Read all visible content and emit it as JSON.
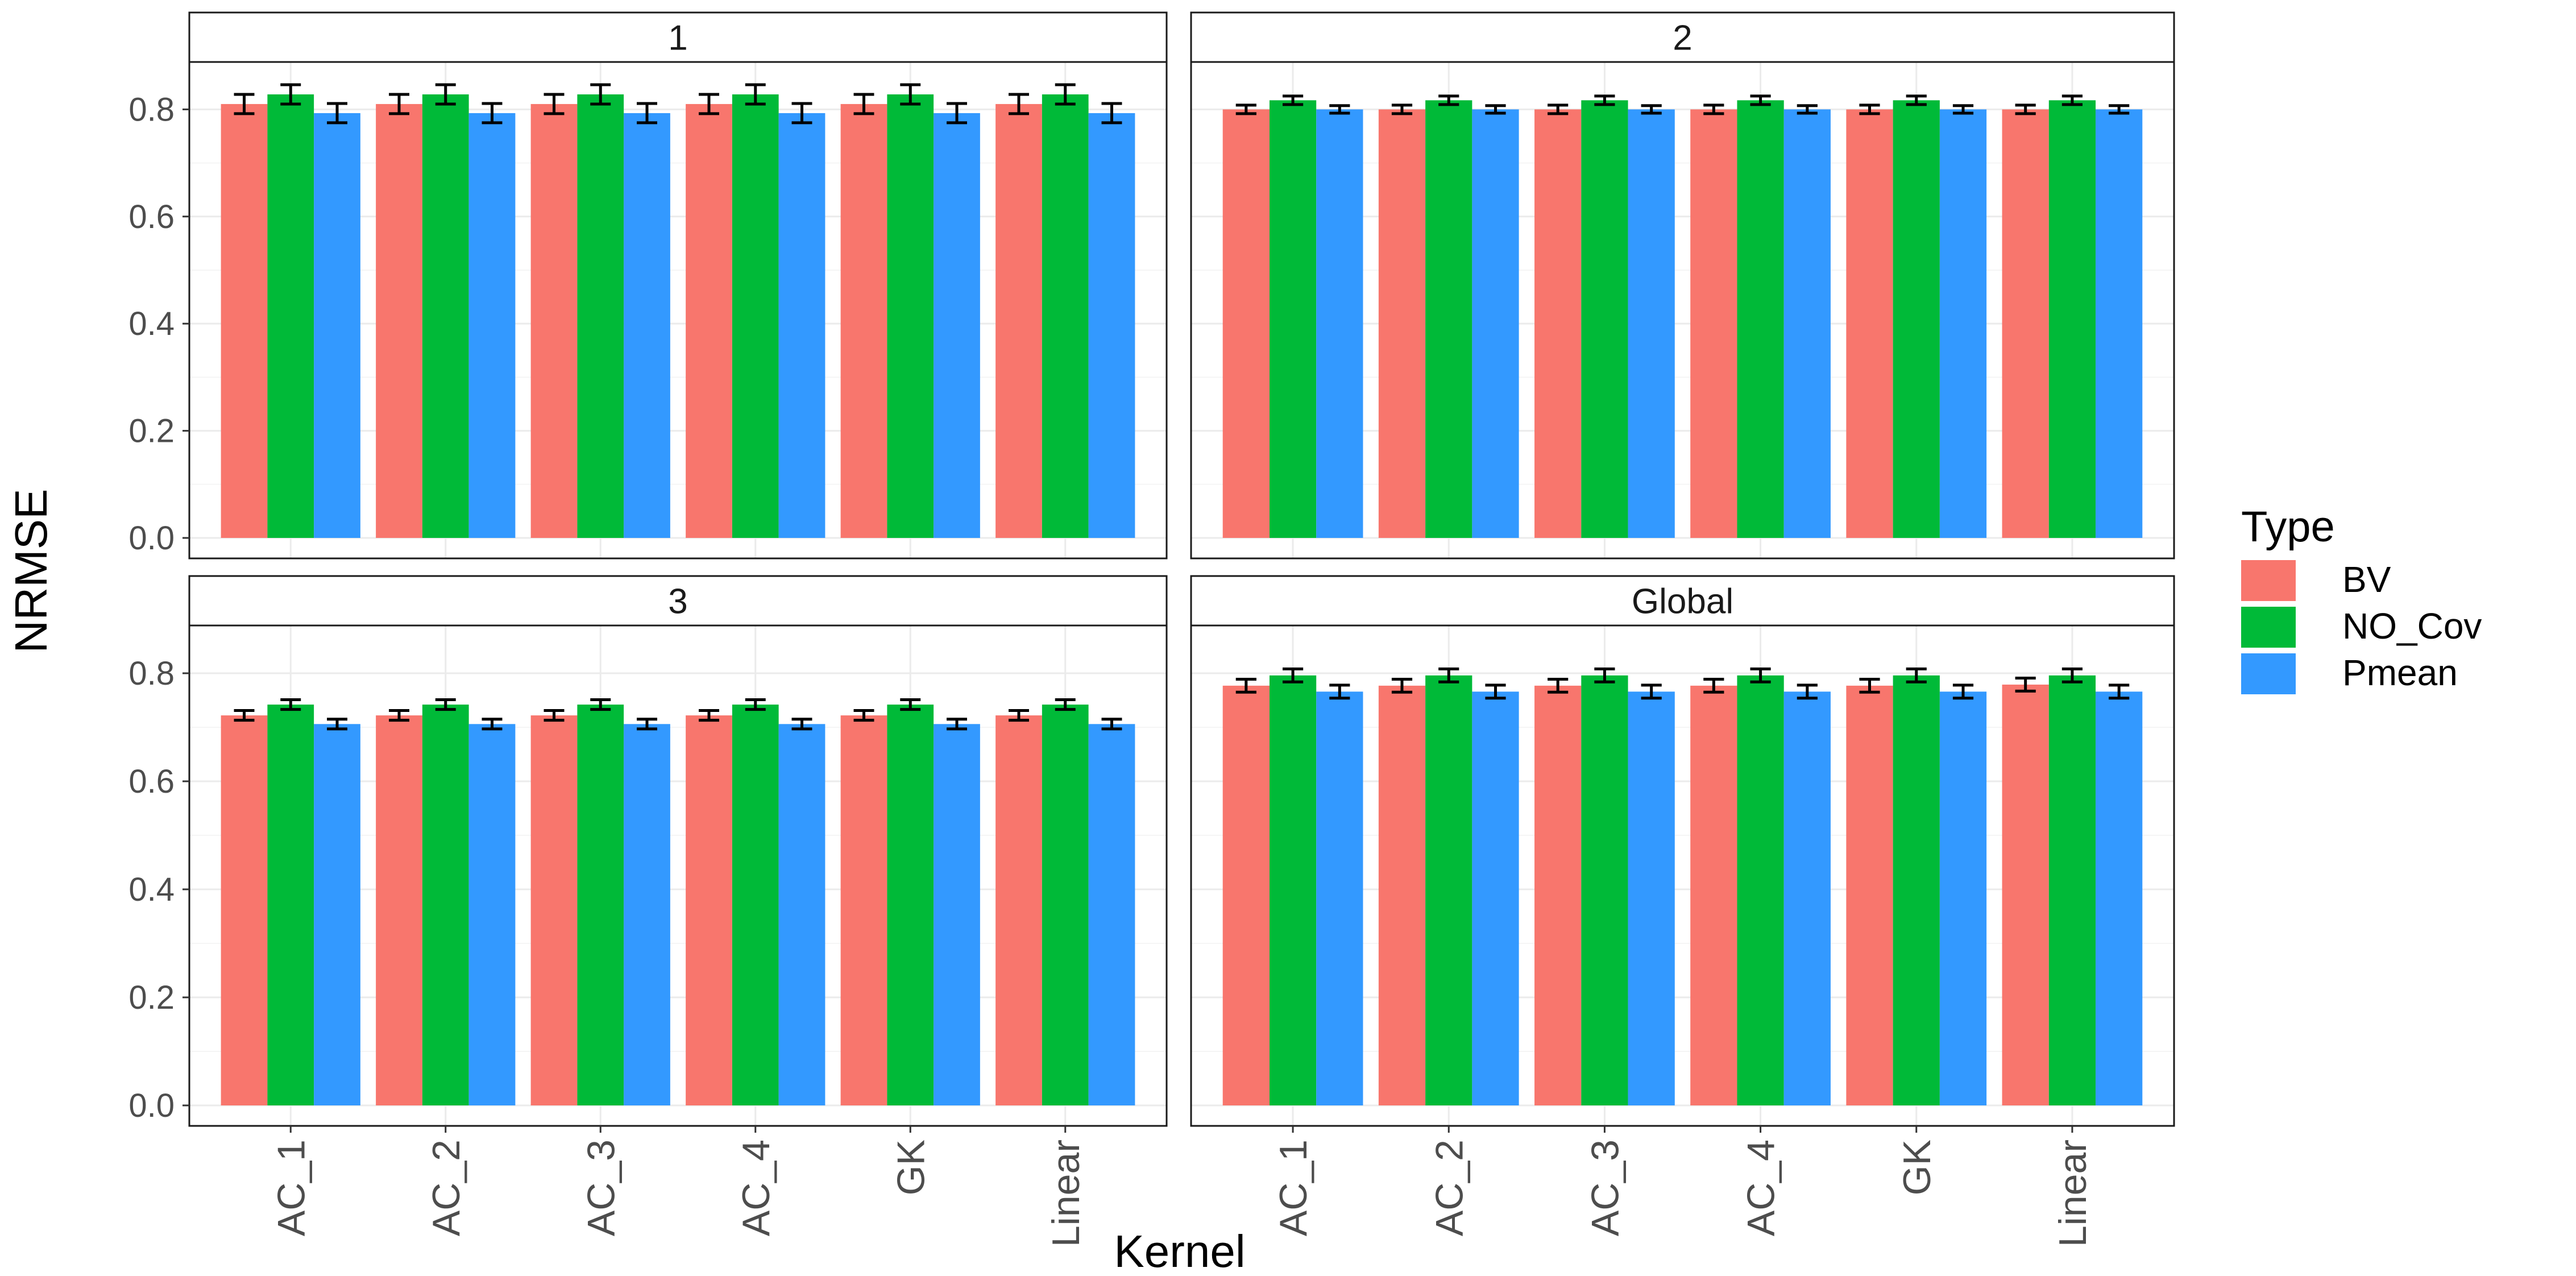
{
  "chart_data": {
    "type": "bar",
    "xlabel": "Kernel",
    "ylabel": "NRMSE",
    "ylim": [
      0,
      0.88
    ],
    "yticks": [
      "0.0",
      "0.2",
      "0.4",
      "0.6",
      "0.8"
    ],
    "grid": true,
    "legend": {
      "title": "Type",
      "position": "right"
    },
    "categories": [
      "AC_1",
      "AC_2",
      "AC_3",
      "AC_4",
      "GK",
      "Linear"
    ],
    "series_meta": [
      {
        "name": "BV",
        "color": "#F8766D"
      },
      {
        "name": "NO_Cov",
        "color": "#00BA38"
      },
      {
        "name": "Pmean",
        "color": "#3399FF"
      }
    ],
    "panels": [
      {
        "label": "1",
        "series": [
          {
            "name": "BV",
            "values": [
              0.81,
              0.81,
              0.81,
              0.81,
              0.81,
              0.81
            ],
            "errors": [
              0.018,
              0.018,
              0.018,
              0.018,
              0.018,
              0.018
            ]
          },
          {
            "name": "NO_Cov",
            "values": [
              0.828,
              0.828,
              0.828,
              0.828,
              0.828,
              0.828
            ],
            "errors": [
              0.018,
              0.018,
              0.018,
              0.018,
              0.018,
              0.018
            ]
          },
          {
            "name": "Pmean",
            "values": [
              0.793,
              0.793,
              0.793,
              0.793,
              0.793,
              0.793
            ],
            "errors": [
              0.018,
              0.018,
              0.018,
              0.018,
              0.018,
              0.018
            ]
          }
        ]
      },
      {
        "label": "2",
        "series": [
          {
            "name": "BV",
            "values": [
              0.8,
              0.8,
              0.8,
              0.8,
              0.8,
              0.8
            ],
            "errors": [
              0.008,
              0.008,
              0.008,
              0.008,
              0.008,
              0.008
            ]
          },
          {
            "name": "NO_Cov",
            "values": [
              0.817,
              0.817,
              0.817,
              0.817,
              0.817,
              0.817
            ],
            "errors": [
              0.008,
              0.008,
              0.008,
              0.008,
              0.008,
              0.008
            ]
          },
          {
            "name": "Pmean",
            "values": [
              0.8,
              0.8,
              0.8,
              0.8,
              0.8,
              0.8
            ],
            "errors": [
              0.007,
              0.007,
              0.007,
              0.007,
              0.007,
              0.007
            ]
          }
        ]
      },
      {
        "label": "3",
        "series": [
          {
            "name": "BV",
            "values": [
              0.722,
              0.722,
              0.722,
              0.722,
              0.722,
              0.722
            ],
            "errors": [
              0.009,
              0.009,
              0.009,
              0.009,
              0.009,
              0.009
            ]
          },
          {
            "name": "NO_Cov",
            "values": [
              0.742,
              0.742,
              0.742,
              0.742,
              0.742,
              0.742
            ],
            "errors": [
              0.009,
              0.009,
              0.009,
              0.009,
              0.009,
              0.009
            ]
          },
          {
            "name": "Pmean",
            "values": [
              0.706,
              0.706,
              0.706,
              0.706,
              0.706,
              0.706
            ],
            "errors": [
              0.009,
              0.009,
              0.009,
              0.009,
              0.009,
              0.009
            ]
          }
        ]
      },
      {
        "label": "Global",
        "series": [
          {
            "name": "BV",
            "values": [
              0.777,
              0.777,
              0.777,
              0.777,
              0.777,
              0.779
            ],
            "errors": [
              0.012,
              0.012,
              0.012,
              0.012,
              0.012,
              0.012
            ]
          },
          {
            "name": "NO_Cov",
            "values": [
              0.796,
              0.796,
              0.796,
              0.796,
              0.796,
              0.796
            ],
            "errors": [
              0.012,
              0.012,
              0.012,
              0.012,
              0.012,
              0.012
            ]
          },
          {
            "name": "Pmean",
            "values": [
              0.766,
              0.766,
              0.766,
              0.766,
              0.766,
              0.766
            ],
            "errors": [
              0.012,
              0.012,
              0.012,
              0.012,
              0.012,
              0.012
            ]
          }
        ]
      }
    ]
  }
}
